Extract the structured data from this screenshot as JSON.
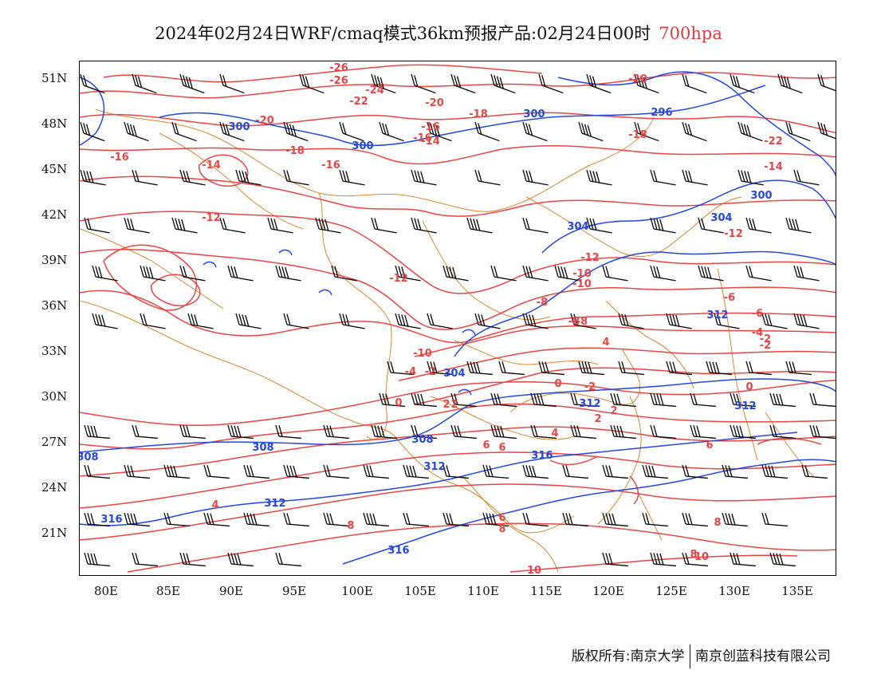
{
  "title": {
    "main": "2024年02月24日WRF/cmaq模式36km预报产品:02月24日00时",
    "level": "700hpa"
  },
  "axes": {
    "lat_labels": [
      "51N",
      "48N",
      "45N",
      "42N",
      "39N",
      "36N",
      "33N",
      "30N",
      "27N",
      "24N",
      "21N"
    ],
    "lon_labels": [
      "80E",
      "85E",
      "90E",
      "95E",
      "100E",
      "105E",
      "110E",
      "115E",
      "120E",
      "125E",
      "130E",
      "135E"
    ]
  },
  "contours": {
    "temperature_labels": [
      "-26",
      "-26",
      "-24",
      "-22",
      "-20",
      "-20",
      "-20",
      "-18",
      "-18",
      "-18",
      "-16",
      "-16",
      "-16",
      "-16",
      "-14",
      "-14",
      "-14",
      "-12",
      "-12",
      "-12",
      "-12",
      "-10",
      "-10",
      "-10",
      "-8",
      "-8",
      "-8",
      "-6",
      "-6",
      "-4",
      "-4",
      "-2",
      "-2",
      "-2",
      "-2",
      "0",
      "0",
      "0",
      "2",
      "2",
      "2",
      "2",
      "4",
      "4",
      "4",
      "6",
      "6",
      "6",
      "6",
      "8",
      "8",
      "8",
      "8",
      "10",
      "10",
      "-22"
    ],
    "height_labels": [
      "300",
      "300",
      "300",
      "296",
      "300",
      "304",
      "304",
      "304",
      "308",
      "308",
      "308",
      "312",
      "312",
      "312",
      "312",
      "312",
      "316",
      "316",
      "316"
    ]
  },
  "colors": {
    "temperature": "#e84545",
    "geopotential": "#2447e0",
    "borders": "#d9872f",
    "wind_barbs": "#000000",
    "level_text": "#e03c3c"
  },
  "footer": {
    "left": "版权所有:南京大学",
    "right": "南京创蓝科技有限公司"
  }
}
